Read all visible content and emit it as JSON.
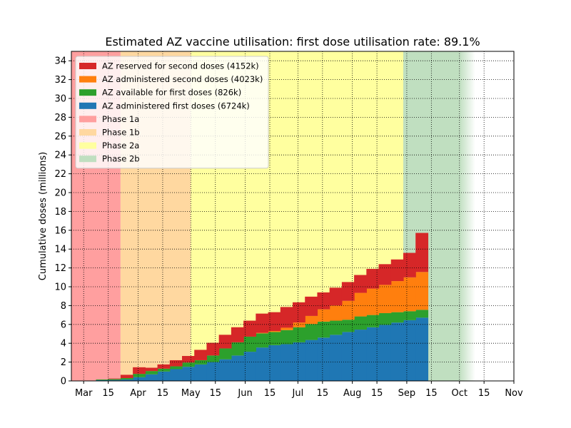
{
  "chart_data": {
    "type": "area",
    "title": "Estimated AZ vaccine utilisation: first dose utilisation rate: 89.1%",
    "xlabel": "",
    "ylabel": "Cumulative doses (millions)",
    "ylim": [
      0,
      35
    ],
    "yticks": [
      0,
      2,
      4,
      6,
      8,
      10,
      12,
      14,
      16,
      18,
      20,
      22,
      24,
      26,
      28,
      30,
      32,
      34
    ],
    "xlim": [
      "2021-02-22",
      "2021-11-01"
    ],
    "xtick_labels": [
      {
        "date": "2021-03-01",
        "label": "Mar"
      },
      {
        "date": "2021-03-15",
        "label": "15"
      },
      {
        "date": "2021-04-01",
        "label": "Apr"
      },
      {
        "date": "2021-04-15",
        "label": "15"
      },
      {
        "date": "2021-05-01",
        "label": "May"
      },
      {
        "date": "2021-05-15",
        "label": "15"
      },
      {
        "date": "2021-06-01",
        "label": "Jun"
      },
      {
        "date": "2021-06-15",
        "label": "15"
      },
      {
        "date": "2021-07-01",
        "label": "Jul"
      },
      {
        "date": "2021-07-15",
        "label": "15"
      },
      {
        "date": "2021-08-01",
        "label": "Aug"
      },
      {
        "date": "2021-08-15",
        "label": "15"
      },
      {
        "date": "2021-09-01",
        "label": "Sep"
      },
      {
        "date": "2021-09-15",
        "label": "15"
      },
      {
        "date": "2021-10-01",
        "label": "Oct"
      },
      {
        "date": "2021-10-15",
        "label": "15"
      },
      {
        "date": "2021-11-01",
        "label": "Nov"
      }
    ],
    "grid": true,
    "legend_position": "top-left",
    "phases": [
      {
        "name": "Phase 1a",
        "start": "2021-02-22",
        "end": "2021-03-22",
        "color": "#ff9f9f"
      },
      {
        "name": "Phase 1b",
        "start": "2021-03-22",
        "end": "2021-05-01",
        "color": "#ffd8a0"
      },
      {
        "name": "Phase 2a",
        "start": "2021-05-01",
        "end": "2021-08-30",
        "color": "#ffff9f"
      },
      {
        "name": "Phase 2b",
        "start": "2021-08-30",
        "end": "2021-10-01",
        "color": "#c0dfc0",
        "fade_to": "2021-10-10"
      }
    ],
    "week_starts": [
      "2021-03-08",
      "2021-03-15",
      "2021-03-22",
      "2021-03-29",
      "2021-04-05",
      "2021-04-12",
      "2021-04-19",
      "2021-04-26",
      "2021-05-03",
      "2021-05-10",
      "2021-05-17",
      "2021-05-24",
      "2021-05-31",
      "2021-06-07",
      "2021-06-14",
      "2021-06-21",
      "2021-06-28",
      "2021-07-05",
      "2021-07-12",
      "2021-07-19",
      "2021-07-26",
      "2021-08-02",
      "2021-08-09",
      "2021-08-16",
      "2021-08-23",
      "2021-08-30",
      "2021-09-06"
    ],
    "x_end": "2021-09-13",
    "series": [
      {
        "name": "AZ administered first doses (6724k)",
        "color": "#1f77b4",
        "values": [
          0.08,
          0.1,
          0.15,
          0.4,
          0.7,
          1.0,
          1.25,
          1.5,
          1.75,
          2.0,
          2.3,
          2.7,
          3.1,
          3.55,
          3.8,
          3.9,
          4.1,
          4.35,
          4.6,
          4.9,
          5.2,
          5.45,
          5.7,
          5.95,
          6.2,
          6.45,
          6.72
        ]
      },
      {
        "name": "AZ available for first doses (826k)",
        "color": "#2ca02c",
        "values": [
          0.07,
          0.1,
          0.15,
          0.35,
          0.35,
          0.3,
          0.3,
          0.45,
          0.45,
          0.7,
          1.15,
          1.4,
          1.6,
          1.5,
          1.4,
          1.5,
          1.6,
          1.7,
          1.7,
          1.5,
          1.3,
          1.4,
          1.3,
          1.25,
          1.1,
          0.95,
          0.83
        ]
      },
      {
        "name": "AZ administered second doses (4023k)",
        "color": "#ff7f0e",
        "values": [
          0,
          0,
          0,
          0,
          0,
          0,
          0,
          0,
          0,
          0,
          0,
          0,
          0,
          0.05,
          0.1,
          0.25,
          0.5,
          0.85,
          1.3,
          1.6,
          2.0,
          2.5,
          2.8,
          3.0,
          3.3,
          3.6,
          4.02
        ]
      },
      {
        "name": "AZ reserved for second doses (4152k)",
        "color": "#d62728",
        "values": [
          0,
          0.05,
          0.35,
          0.7,
          0.35,
          0.45,
          0.65,
          0.7,
          1.1,
          1.35,
          1.45,
          1.6,
          1.7,
          2.05,
          2.0,
          2.2,
          2.15,
          2.05,
          1.8,
          1.9,
          2.0,
          1.9,
          2.1,
          2.2,
          2.3,
          2.6,
          4.15
        ]
      }
    ]
  }
}
